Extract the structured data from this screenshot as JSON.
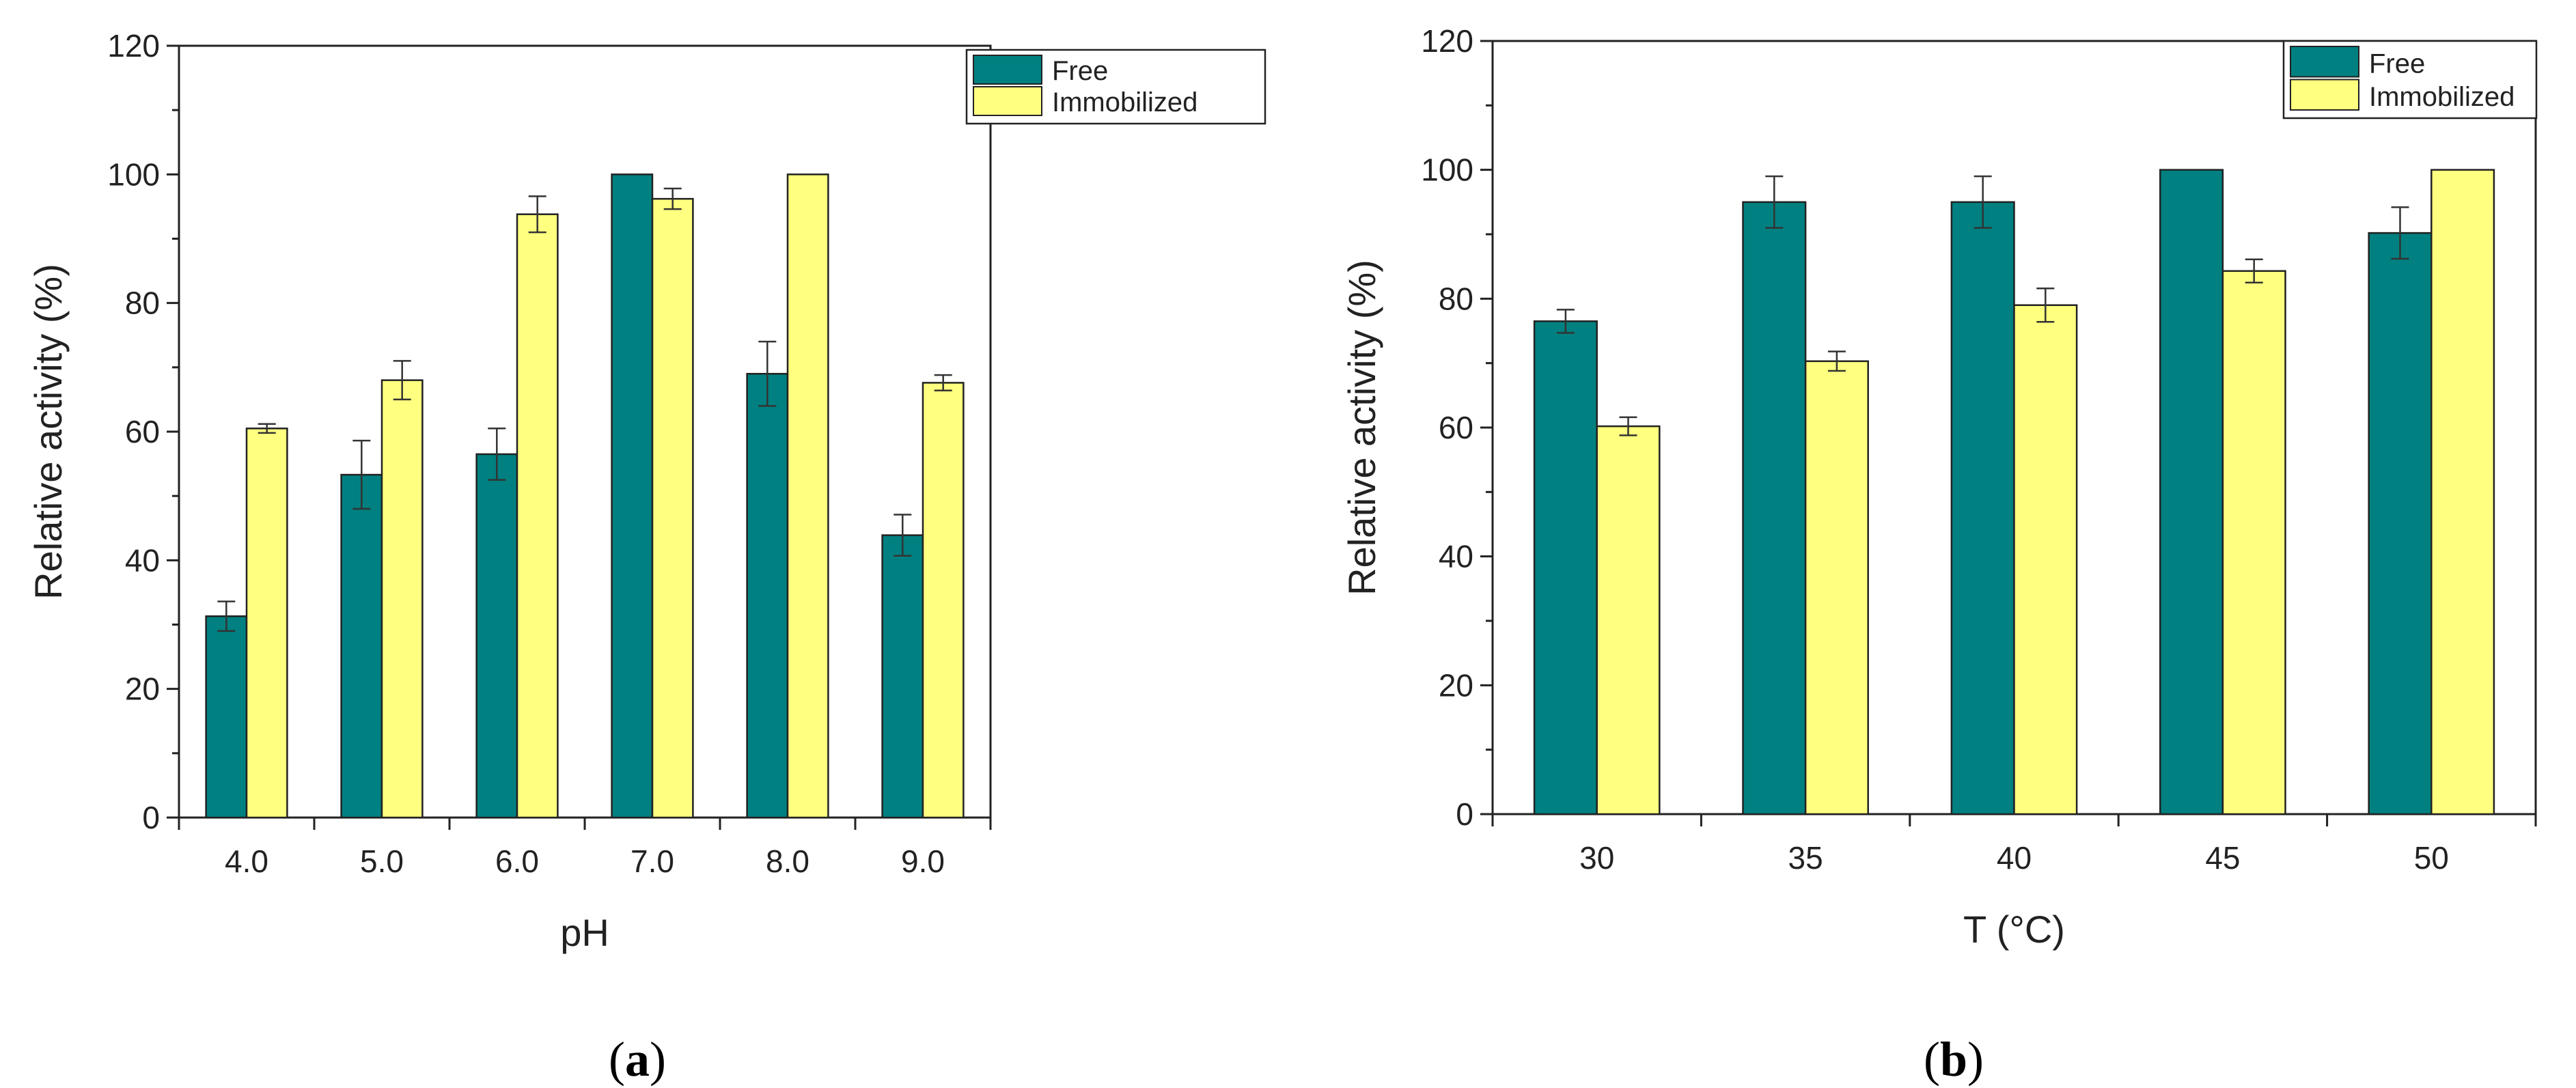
{
  "chart_data": [
    {
      "type": "bar",
      "panel_label": "a",
      "title": "",
      "xlabel": "pH",
      "ylabel": "Relative activity (%)",
      "categories": [
        "4.0",
        "5.0",
        "6.0",
        "7.0",
        "8.0",
        "9.0"
      ],
      "ylim": [
        0,
        120
      ],
      "yticks": [
        0,
        20,
        40,
        60,
        80,
        100,
        120
      ],
      "legend_position": "top-right",
      "grid": false,
      "series": [
        {
          "name": "Free",
          "color": "#008080",
          "values": [
            31.3,
            53.3,
            56.5,
            100,
            69.0,
            43.9
          ],
          "errors": [
            2.3,
            5.3,
            4.0,
            0,
            5.0,
            3.2
          ]
        },
        {
          "name": "Immobilized",
          "color": "#FFFF80",
          "values": [
            60.5,
            68.0,
            93.8,
            96.2,
            100,
            67.6
          ],
          "errors": [
            0.7,
            3.0,
            2.8,
            1.6,
            0,
            1.2
          ]
        }
      ]
    },
    {
      "type": "bar",
      "panel_label": "b",
      "title": "",
      "xlabel": "T (°C)",
      "ylabel": "Relative activity (%)",
      "categories": [
        "30",
        "35",
        "40",
        "45",
        "50"
      ],
      "ylim": [
        0,
        120
      ],
      "yticks": [
        0,
        20,
        40,
        60,
        80,
        100,
        120
      ],
      "legend_position": "top-right",
      "grid": false,
      "series": [
        {
          "name": "Free",
          "color": "#008080",
          "values": [
            76.5,
            95.0,
            95.0,
            100,
            90.2
          ],
          "errors": [
            1.8,
            4.0,
            4.0,
            0,
            4.0
          ]
        },
        {
          "name": "Immobilized",
          "color": "#FFFF80",
          "values": [
            60.2,
            70.3,
            79.0,
            84.3,
            100
          ],
          "errors": [
            1.4,
            1.5,
            2.6,
            1.8,
            0
          ]
        }
      ]
    }
  ]
}
